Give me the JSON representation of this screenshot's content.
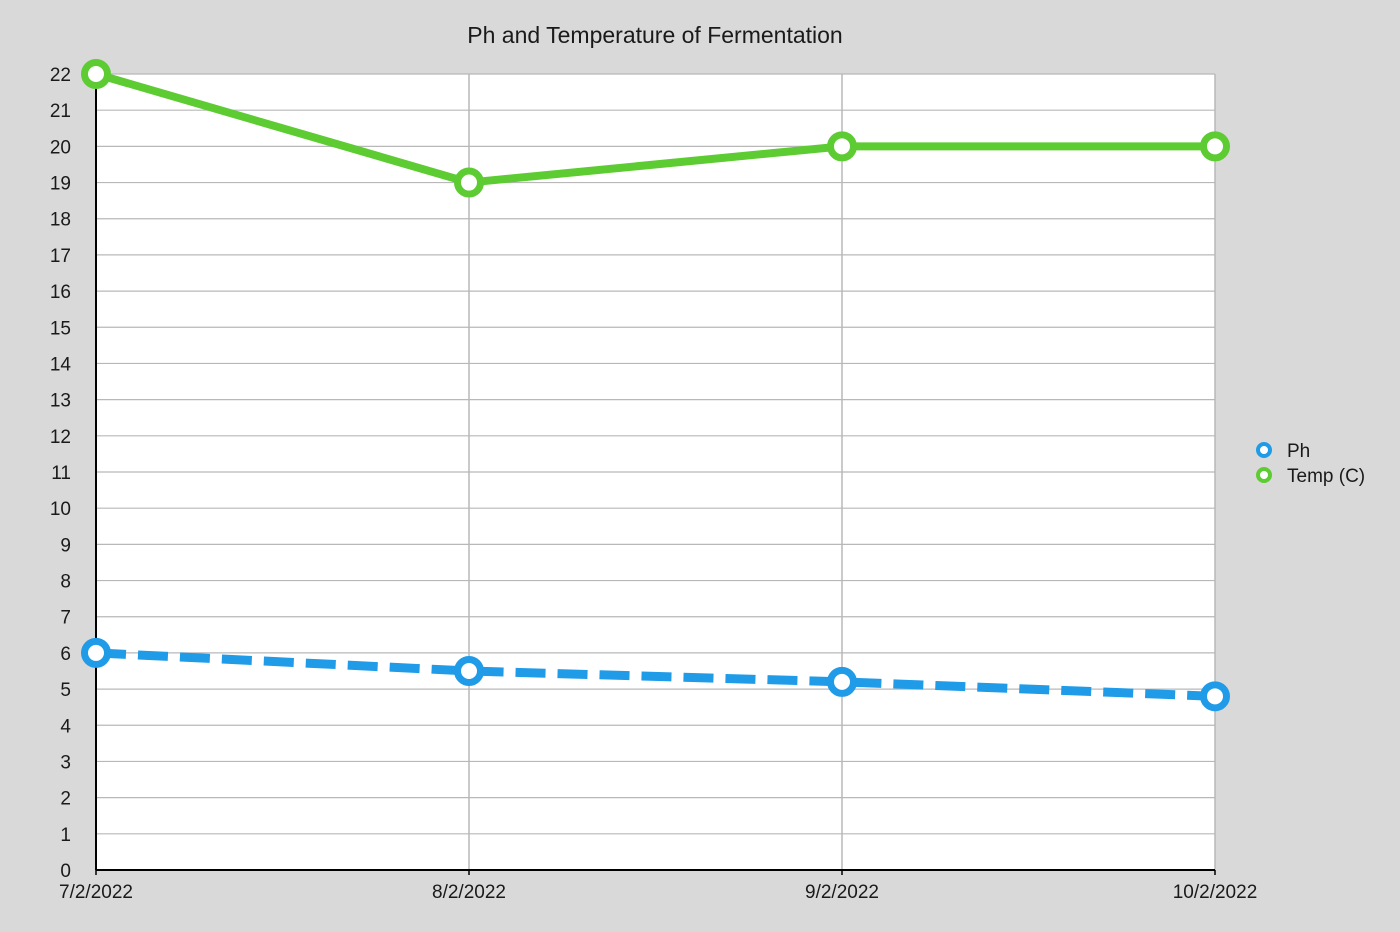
{
  "chart_data": {
    "type": "line",
    "title": "Ph and Temperature of Fermentation",
    "xlabel": "",
    "ylabel": "",
    "categories": [
      "7/2/2022",
      "8/2/2022",
      "9/2/2022",
      "10/2/2022"
    ],
    "ylim": [
      0,
      22
    ],
    "yticks": [
      0,
      1,
      2,
      3,
      4,
      5,
      6,
      7,
      8,
      9,
      10,
      11,
      12,
      13,
      14,
      15,
      16,
      17,
      18,
      19,
      20,
      21,
      22
    ],
    "grid": true,
    "legend_position": "right",
    "series": [
      {
        "name": "Ph",
        "values": [
          6.0,
          5.5,
          5.2,
          4.8
        ],
        "color": "#1f9be8",
        "line_style": "dashed",
        "marker": "hollow-circle"
      },
      {
        "name": "Temp (C)",
        "values": [
          22,
          19,
          20,
          20
        ],
        "color": "#5ccc32",
        "line_style": "solid",
        "marker": "hollow-circle"
      }
    ]
  }
}
